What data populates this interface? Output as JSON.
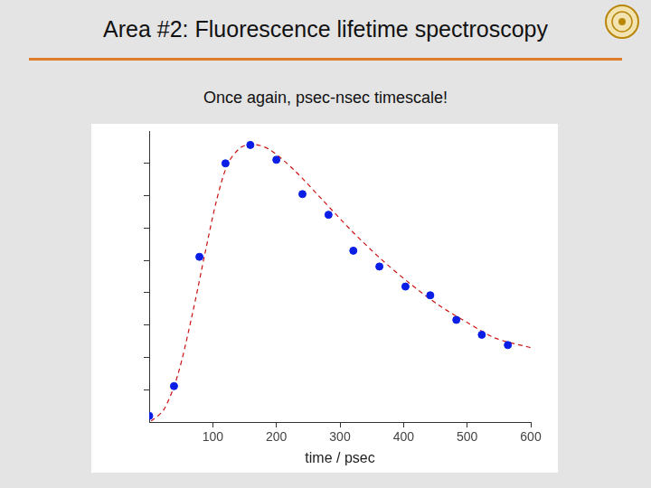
{
  "chart_data": {
    "type": "scatter",
    "title": "Area #2: Fluorescence lifetime spectroscopy",
    "subtitle": "Once again, psec-nsec timescale!",
    "xlabel": "time / psec",
    "xlim": [
      0,
      600
    ],
    "xticks": [
      100,
      200,
      300,
      400,
      500,
      600
    ],
    "ylim": [
      0,
      9
    ],
    "yticks": [
      1,
      2,
      3,
      4,
      5,
      6,
      7,
      8
    ],
    "tick_labels": "x",
    "grid": false,
    "series": [
      {
        "type": "scatter",
        "color": "#0a1ee6",
        "marker": "circle",
        "x": [
          0,
          39,
          79,
          120,
          159,
          200,
          241,
          282,
          321,
          362,
          403,
          442,
          483,
          523,
          564
        ],
        "values": [
          0.19,
          1.11,
          5.11,
          8.0,
          8.57,
          8.11,
          7.05,
          6.41,
          5.3,
          4.81,
          4.19,
          3.92,
          3.16,
          2.7,
          2.38
        ]
      },
      {
        "type": "line",
        "color": "#cc1111",
        "line_style": "dashed",
        "x": [
          3,
          23,
          45,
          68,
          88,
          106,
          124,
          144,
          164,
          189,
          227,
          273,
          318,
          364,
          409,
          455,
          500,
          545,
          600
        ],
        "values": [
          0.03,
          0.38,
          1.46,
          3.35,
          5.24,
          6.86,
          8.0,
          8.49,
          8.59,
          8.43,
          7.81,
          6.86,
          5.92,
          5.05,
          4.3,
          3.62,
          3.08,
          2.59,
          2.3
        ]
      }
    ]
  }
}
